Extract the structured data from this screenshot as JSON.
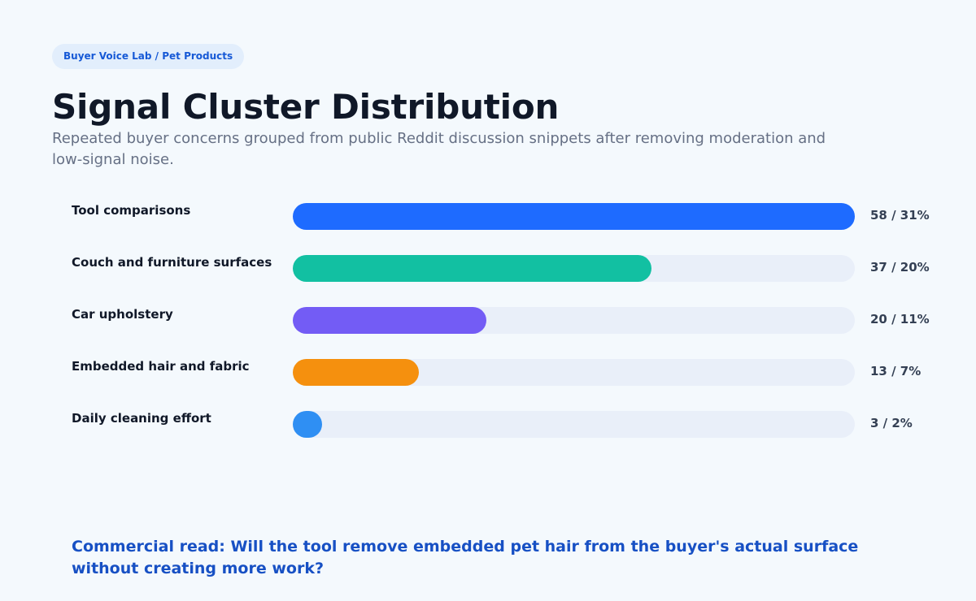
{
  "badge": "Buyer Voice Lab / Pet Products",
  "title": "Signal Cluster Distribution",
  "subtitle": "Repeated buyer concerns grouped from public Reddit discussion snippets after removing moderation and low-signal noise.",
  "chart_data": {
    "type": "bar",
    "orientation": "horizontal",
    "categories": [
      "Tool comparisons",
      "Couch and furniture surfaces",
      "Car upholstery",
      "Embedded hair and fabric",
      "Daily cleaning effort"
    ],
    "values": [
      58,
      37,
      20,
      13,
      3
    ],
    "percents": [
      31,
      20,
      11,
      7,
      2
    ],
    "value_labels": [
      "58 / 31%",
      "37 / 20%",
      "20 / 11%",
      "13 / 7%",
      "3 / 2%"
    ],
    "colors": [
      "#1e6bff",
      "#12c0a2",
      "#735cf5",
      "#f5900e",
      "#2f8ff3"
    ],
    "xlim": [
      0,
      58
    ],
    "grid": false,
    "legend": "none"
  },
  "footer": "Commercial read: Will the tool remove embedded pet hair from the buyer's actual surface without creating more work?"
}
